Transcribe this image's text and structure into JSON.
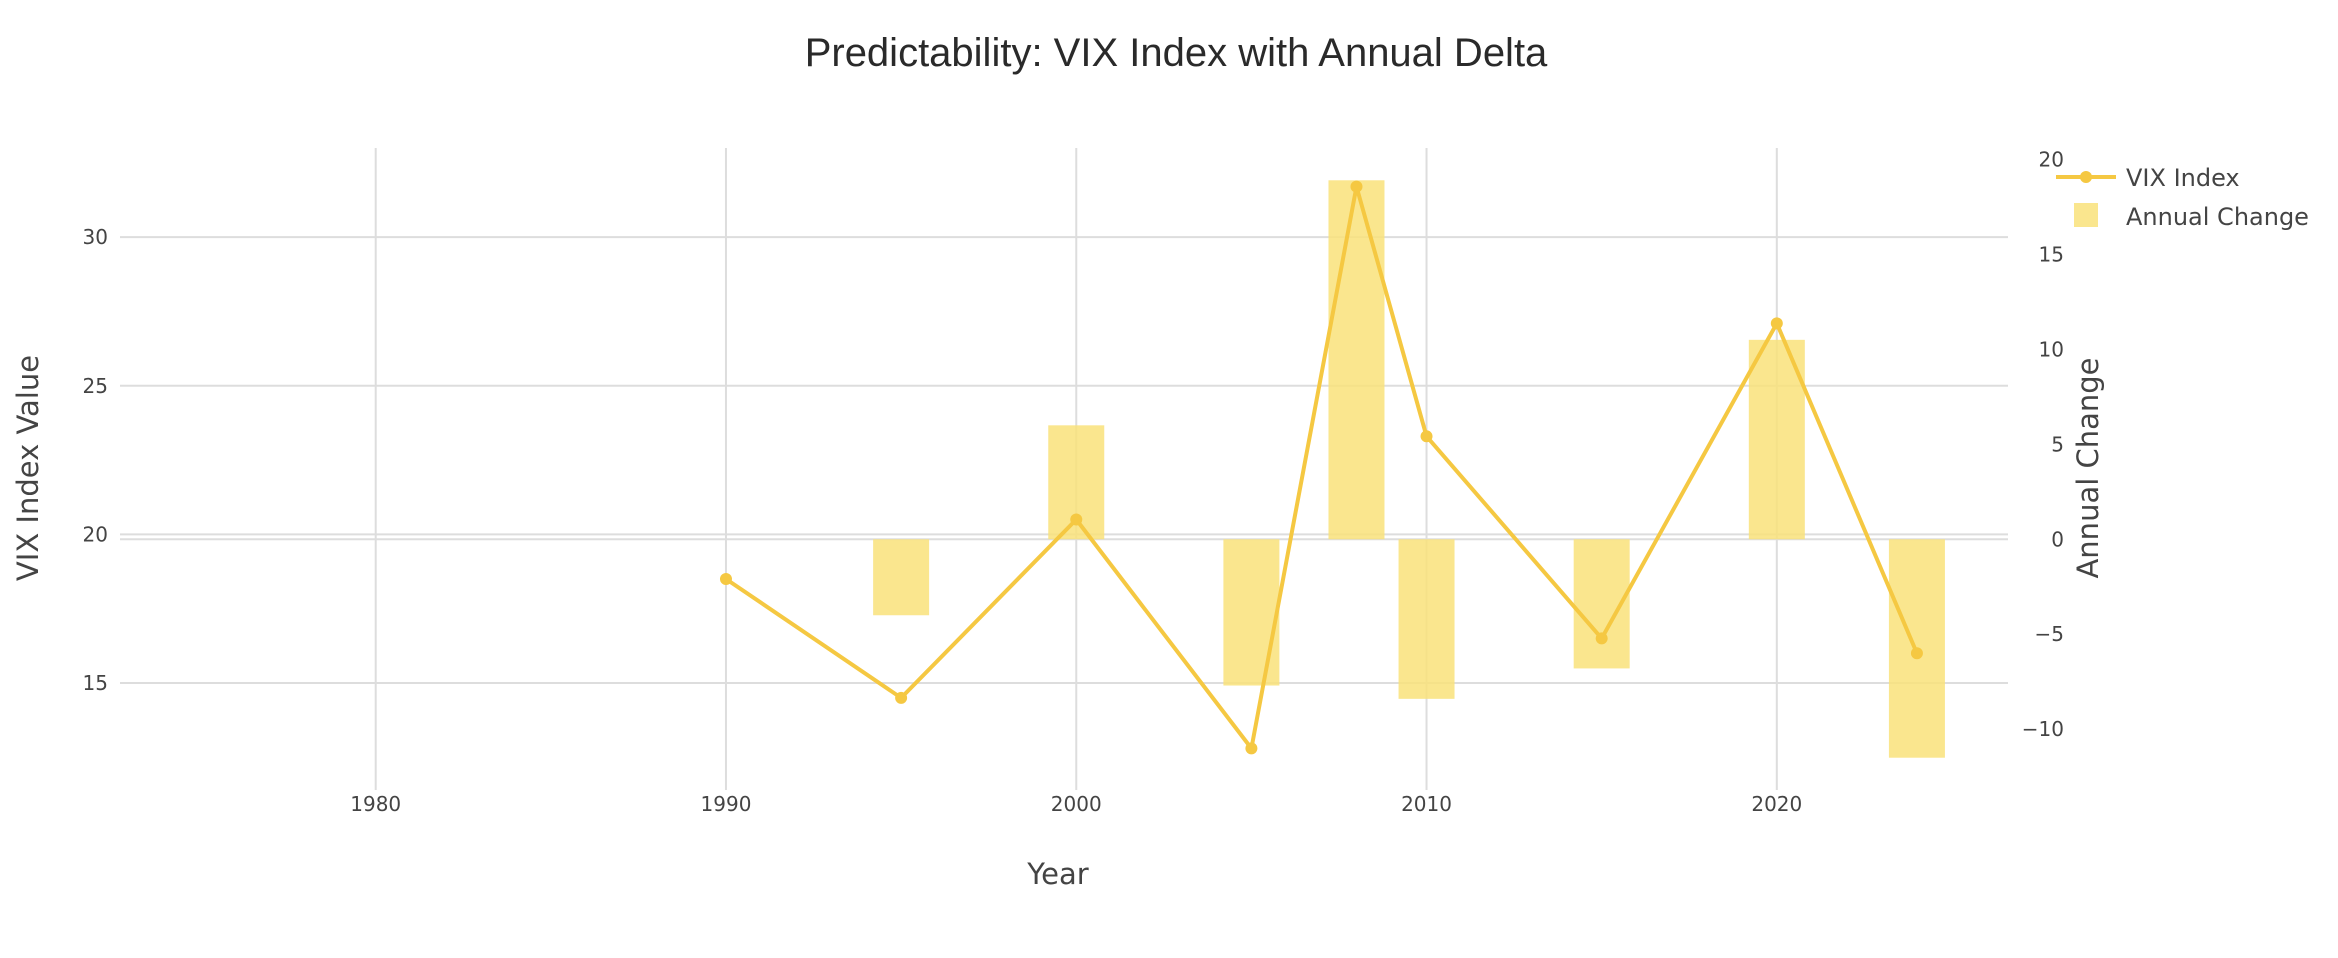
{
  "chart_data": {
    "type": "bar+line",
    "title": "Predictability: VIX Index with Annual Delta",
    "xlabel": "Year",
    "ylabel": "VIX Index Value",
    "y2label": "Annual Change",
    "xlim": [
      1972.7,
      1981.0
    ],
    "xticks": [
      1980,
      1990,
      2000,
      2010,
      2020
    ],
    "ylim": [
      11.4,
      33.0
    ],
    "yticks": [
      15,
      20,
      25,
      30
    ],
    "y2lim": [
      -13.2,
      20.6
    ],
    "y2ticks": [
      -10,
      -5,
      0,
      5,
      10,
      15,
      20
    ],
    "y2ticklabels": [
      "−10",
      "−5",
      "0",
      "5",
      "10",
      "15",
      "20"
    ],
    "grid": true,
    "legend_position": "top-right",
    "colors": {
      "line": "#f5c842",
      "bar": "#f9e27a"
    },
    "series": [
      {
        "name": "VIX Index",
        "type": "line",
        "axis": "y",
        "x": [
          1990,
          1995,
          2000,
          2005,
          2008,
          2010,
          2015,
          2020,
          2024
        ],
        "values": [
          18.5,
          14.5,
          20.5,
          12.8,
          31.7,
          23.3,
          16.5,
          27.1,
          16.0
        ]
      },
      {
        "name": "Annual Change",
        "type": "bar",
        "axis": "y2",
        "x": [
          1995,
          2000,
          2005,
          2008,
          2010,
          2015,
          2020,
          2024
        ],
        "values": [
          -4.0,
          6.0,
          -7.7,
          18.9,
          -8.4,
          -6.8,
          10.5,
          -11.5
        ]
      }
    ]
  }
}
